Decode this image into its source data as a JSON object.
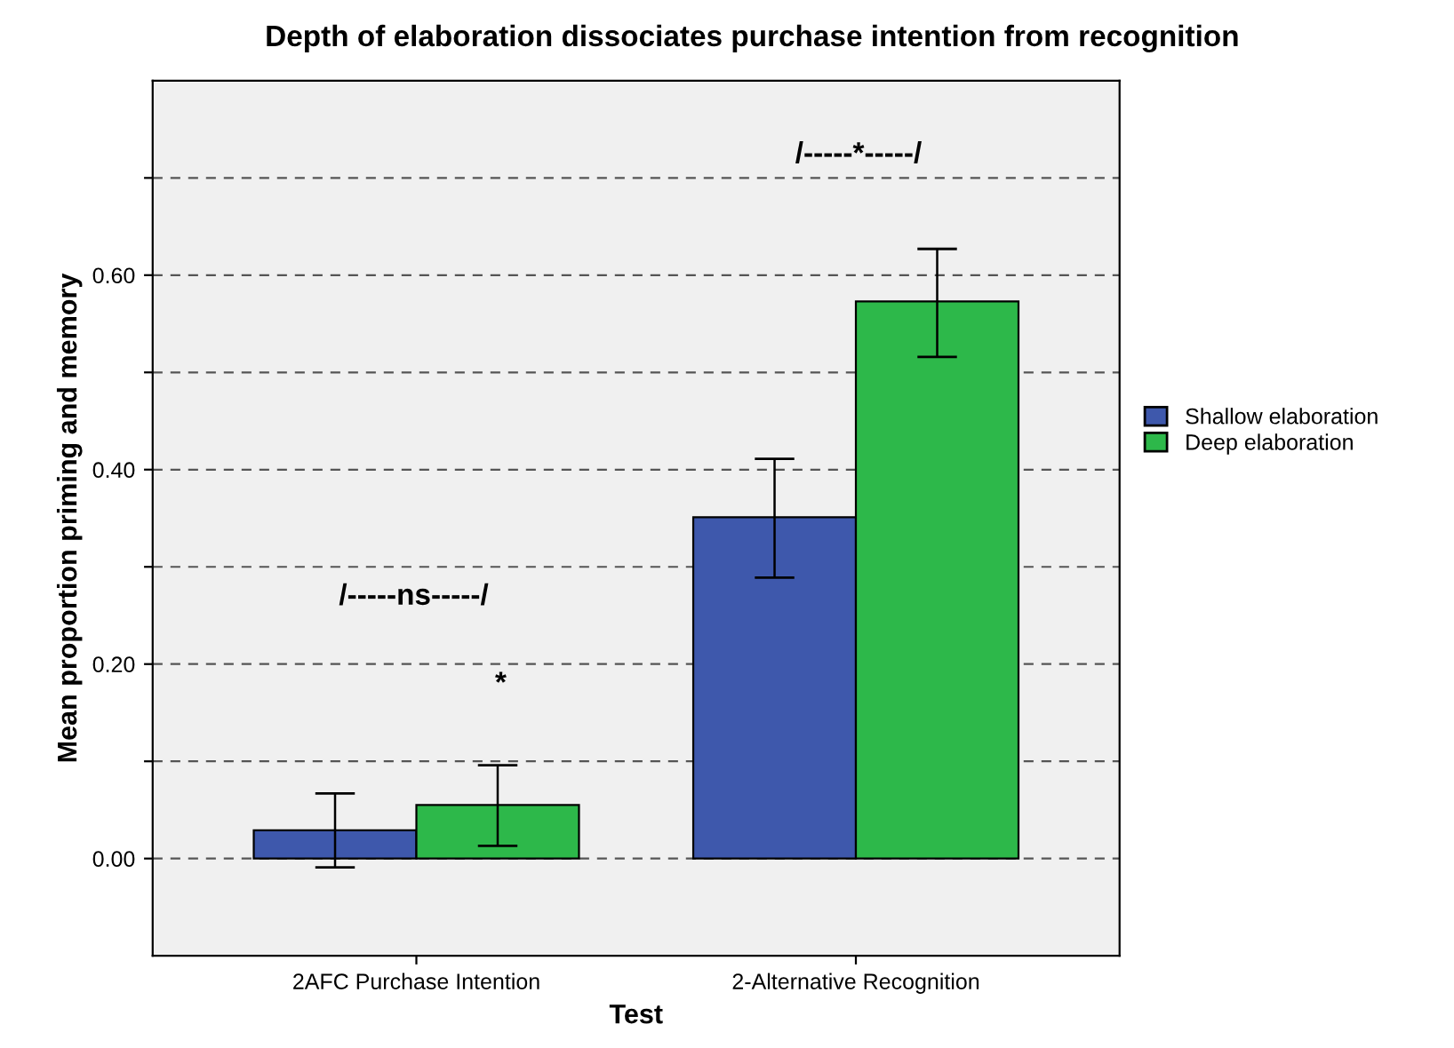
{
  "chart_data": {
    "type": "bar",
    "title": "Depth of elaboration dissociates purchase intention from recognition",
    "xlabel": "Test",
    "ylabel": "Mean proportion priming and memory",
    "categories": [
      "2AFC Purchase Intention",
      "2-Alternative Recognition"
    ],
    "series": [
      {
        "name": "Shallow elaboration",
        "color": "#3e58ac",
        "values": [
          0.029,
          0.351
        ],
        "errors": [
          [
            -0.009,
            0.067
          ],
          [
            0.289,
            0.411
          ]
        ]
      },
      {
        "name": "Deep elaboration",
        "color": "#2db84a",
        "values": [
          0.055,
          0.573
        ],
        "errors": [
          [
            0.013,
            0.096
          ],
          [
            0.516,
            0.627
          ]
        ]
      }
    ],
    "ylim": [
      -0.1,
      0.8
    ],
    "yticks": [
      {
        "value": 0.0,
        "label": "0.00"
      },
      {
        "value": 0.1,
        "label": null
      },
      {
        "value": 0.2,
        "label": "0.20"
      },
      {
        "value": 0.3,
        "label": null
      },
      {
        "value": 0.4,
        "label": "0.40"
      },
      {
        "value": 0.5,
        "label": null
      },
      {
        "value": 0.6,
        "label": "0.60"
      },
      {
        "value": 0.7,
        "label": null
      }
    ],
    "grid": "y",
    "legend": "right",
    "annotations": [
      "/-----ns-----/",
      "*",
      "/-----*-----/"
    ]
  }
}
